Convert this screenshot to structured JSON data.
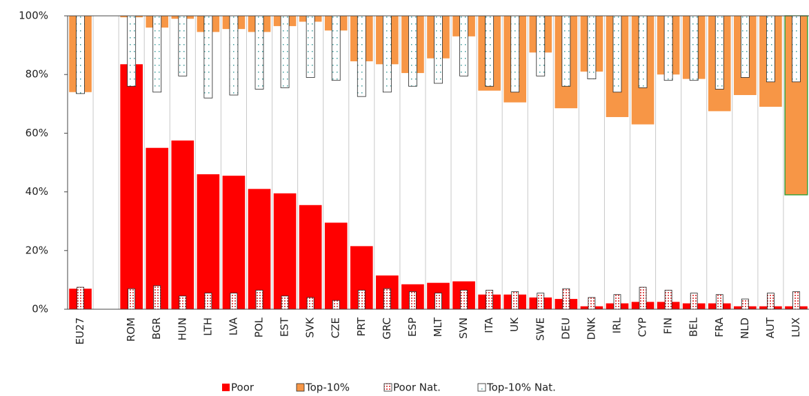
{
  "chart_data": {
    "type": "bar",
    "categories": [
      "EU27",
      null,
      "ROM",
      "BGR",
      "HUN",
      "LTH",
      "LVA",
      "POL",
      "EST",
      "SVK",
      "CZE",
      "PRT",
      "GRC",
      "ESP",
      "MLT",
      "SVN",
      "ITA",
      "UK",
      "SWE",
      "DEU",
      "DNK",
      "IRL",
      "CYP",
      "FIN",
      "BEL",
      "FRA",
      "NLD",
      "AUT",
      "LUX"
    ],
    "series": [
      {
        "name": "Poor",
        "color": "#ff0000",
        "values": [
          7,
          null,
          83.5,
          55,
          57.5,
          46,
          45.5,
          41,
          39.5,
          35.5,
          29.5,
          21.5,
          11.5,
          8.5,
          9,
          9.5,
          5,
          5,
          4,
          3.5,
          1,
          2,
          2.5,
          2.5,
          2,
          2,
          1,
          1,
          1
        ]
      },
      {
        "name": "Top-10%",
        "color": "#f79646",
        "values": [
          26,
          null,
          0.5,
          4,
          1,
          5.5,
          4.5,
          5.5,
          3.5,
          2,
          5,
          15.5,
          16.5,
          19.5,
          14.5,
          7,
          25.5,
          29.5,
          12.5,
          31.5,
          19,
          34.5,
          37,
          20,
          21.5,
          32.5,
          27,
          31,
          61
        ]
      },
      {
        "name": "Poor Nat.",
        "color": "#e06060",
        "values": [
          7.5,
          null,
          7,
          8,
          4.5,
          5.5,
          5.5,
          6.5,
          4.5,
          4,
          3,
          6.5,
          7,
          6,
          5.5,
          6.5,
          6.5,
          6,
          5.5,
          7,
          4,
          5,
          7.5,
          6.5,
          5.5,
          5,
          3.5,
          5.5,
          6
        ]
      },
      {
        "name": "Top-10% Nat.",
        "color": "#4aa0a0",
        "values": [
          26.5,
          null,
          24,
          26,
          20.5,
          28,
          27,
          25,
          24.5,
          21,
          22,
          27.5,
          26,
          24,
          23,
          20.5,
          24,
          26,
          20.5,
          24,
          21.5,
          26,
          24.5,
          22,
          22,
          25,
          21,
          22.5,
          22.5
        ]
      }
    ],
    "ylim": [
      0,
      100
    ],
    "yticks": [
      {
        "value": 0,
        "label": "0%"
      },
      {
        "value": 20,
        "label": "20%"
      },
      {
        "value": 40,
        "label": "40%"
      },
      {
        "value": 60,
        "label": "60%"
      },
      {
        "value": 80,
        "label": "80%"
      },
      {
        "value": 100,
        "label": "100%"
      }
    ]
  }
}
